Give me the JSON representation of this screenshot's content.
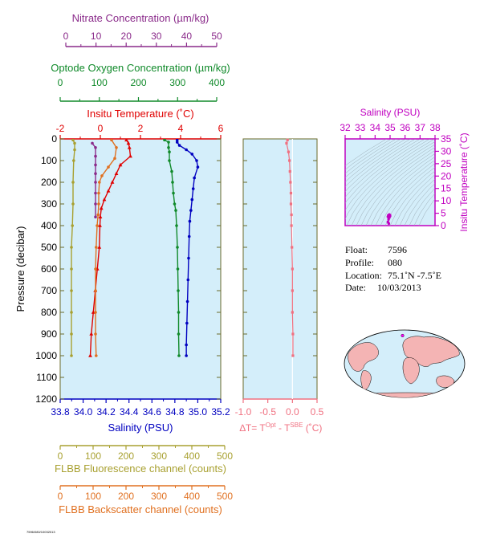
{
  "colors": {
    "nitrate": "#8a2a8a",
    "oxygen": "#108a2a",
    "temperature": "#e00000",
    "salinity": "#0000c0",
    "salinity_ts": "#c000c0",
    "fluorescence": "#a8a030",
    "backscatter": "#e07020",
    "delta_t": "#f07080",
    "plot_bg": "#d4eefa",
    "frame": "#6a6a2a",
    "land": "#f4b4b4"
  },
  "chart_data": [
    {
      "id": "main_profile",
      "type": "line",
      "ylabel": "Pressure (decibar)",
      "ylim": [
        1200,
        0
      ],
      "yticks": [
        0,
        100,
        200,
        300,
        400,
        500,
        600,
        700,
        800,
        900,
        1000,
        1100,
        1200
      ],
      "axes": {
        "nitrate": {
          "label": "Nitrate Concentration (µm/kg)",
          "range": [
            0,
            50
          ],
          "ticks": [
            0,
            10,
            20,
            30,
            40,
            50
          ]
        },
        "oxygen": {
          "label": "Optode Oxygen Concentration (µm/kg)",
          "range": [
            0,
            400
          ],
          "ticks": [
            0,
            100,
            200,
            300,
            400
          ]
        },
        "temperature": {
          "label": "Insitu Temperature (˚C)",
          "range": [
            -2,
            6
          ],
          "ticks": [
            -2,
            0,
            2,
            4,
            6
          ]
        },
        "salinity": {
          "label": "Salinity (PSU)",
          "range": [
            33.8,
            35.2
          ],
          "ticks": [
            "33.8",
            "34.0",
            "34.2",
            "34.4",
            "34.6",
            "34.8",
            "35.0",
            "35.2"
          ]
        },
        "fluorescence": {
          "label": "FLBB Fluorescence channel (counts)",
          "range": [
            0,
            500
          ],
          "ticks": [
            0,
            100,
            200,
            300,
            400,
            500
          ]
        },
        "backscatter": {
          "label": "FLBB Backscatter channel (counts)",
          "range": [
            0,
            500
          ],
          "ticks": [
            0,
            100,
            200,
            300,
            400,
            500
          ]
        }
      },
      "series": [
        {
          "key": "salinity",
          "axis": "salinity",
          "points": [
            [
              34.82,
              5
            ],
            [
              34.82,
              15
            ],
            [
              34.84,
              30
            ],
            [
              34.9,
              50
            ],
            [
              34.95,
              70
            ],
            [
              34.99,
              100
            ],
            [
              35.0,
              130
            ],
            [
              34.97,
              180
            ],
            [
              34.96,
              230
            ],
            [
              34.95,
              280
            ],
            [
              34.94,
              330
            ],
            [
              34.93,
              380
            ],
            [
              34.925,
              450
            ],
            [
              34.92,
              550
            ],
            [
              34.915,
              650
            ],
            [
              34.91,
              750
            ],
            [
              34.905,
              850
            ],
            [
              34.9,
              950
            ],
            [
              34.9,
              1000
            ]
          ]
        },
        {
          "key": "oxygen",
          "axis": "oxygen",
          "points": [
            [
              260,
              5
            ],
            [
              270,
              15
            ],
            [
              270,
              40
            ],
            [
              272,
              60
            ],
            [
              272,
              100
            ],
            [
              278,
              150
            ],
            [
              280,
              200
            ],
            [
              282,
              250
            ],
            [
              285,
              300
            ],
            [
              288,
              330
            ],
            [
              290,
              400
            ],
            [
              292,
              500
            ],
            [
              293,
              600
            ],
            [
              294,
              700
            ],
            [
              295,
              800
            ],
            [
              295,
              900
            ],
            [
              296,
              1000
            ]
          ]
        },
        {
          "key": "temperature",
          "axis": "temperature",
          "points": [
            [
              1.3,
              5
            ],
            [
              1.4,
              20
            ],
            [
              1.45,
              40
            ],
            [
              1.5,
              80
            ],
            [
              1.0,
              120
            ],
            [
              0.8,
              160
            ],
            [
              0.6,
              200
            ],
            [
              0.4,
              240
            ],
            [
              0.2,
              280
            ],
            [
              0.05,
              320
            ],
            [
              0.0,
              360
            ],
            [
              -0.02,
              400
            ],
            [
              -0.05,
              500
            ],
            [
              -0.15,
              600
            ],
            [
              -0.25,
              700
            ],
            [
              -0.35,
              800
            ],
            [
              -0.45,
              900
            ],
            [
              -0.5,
              1000
            ]
          ]
        },
        {
          "key": "nitrate",
          "axis": "nitrate",
          "points": [
            [
              10,
              20
            ],
            [
              11,
              40
            ],
            [
              11,
              80
            ],
            [
              11,
              120
            ],
            [
              11,
              160
            ],
            [
              11,
              200
            ],
            [
              11,
              250
            ],
            [
              11,
              300
            ],
            [
              11,
              360
            ]
          ]
        },
        {
          "key": "fluorescence",
          "axis": "fluorescence",
          "points": [
            [
              40,
              5
            ],
            [
              45,
              20
            ],
            [
              45,
              50
            ],
            [
              42,
              100
            ],
            [
              40,
              200
            ],
            [
              40,
              300
            ],
            [
              38,
              400
            ],
            [
              35,
              500
            ],
            [
              35,
              600
            ],
            [
              35,
              700
            ],
            [
              35,
              800
            ],
            [
              35,
              900
            ],
            [
              35,
              1000
            ]
          ]
        },
        {
          "key": "backscatter",
          "axis": "backscatter",
          "points": [
            [
              160,
              5
            ],
            [
              175,
              40
            ],
            [
              170,
              90
            ],
            [
              150,
              130
            ],
            [
              130,
              170
            ],
            [
              122,
              200
            ],
            [
              120,
              250
            ],
            [
              120,
              300
            ],
            [
              118,
              350
            ],
            [
              115,
              400
            ],
            [
              112,
              500
            ],
            [
              110,
              600
            ],
            [
              110,
              700
            ],
            [
              110,
              800
            ],
            [
              110,
              900
            ],
            [
              112,
              1000
            ]
          ]
        }
      ]
    },
    {
      "id": "delta_t",
      "type": "line",
      "xlabel": "∆T= T",
      "xlabel_sup1": "Opt",
      "xlabel_mid": " - T",
      "xlabel_sup2": "SBE",
      "xlabel_unit": " (˚C)",
      "xlim": [
        -1.0,
        0.5
      ],
      "ylim": [
        1200,
        0
      ],
      "xticks": [
        "-1.0",
        "-0.5",
        "0.0",
        "0.5"
      ],
      "points": [
        [
          -0.1,
          5
        ],
        [
          -0.12,
          20
        ],
        [
          -0.08,
          60
        ],
        [
          -0.06,
          100
        ],
        [
          -0.05,
          150
        ],
        [
          -0.04,
          200
        ],
        [
          -0.03,
          250
        ],
        [
          -0.03,
          300
        ],
        [
          -0.02,
          350
        ],
        [
          -0.02,
          400
        ],
        [
          -0.01,
          500
        ],
        [
          0,
          600
        ],
        [
          0,
          700
        ],
        [
          0,
          800
        ],
        [
          0.01,
          900
        ],
        [
          0.01,
          1000
        ]
      ]
    },
    {
      "id": "ts_diagram",
      "type": "scatter",
      "title": "Salinity (PSU)",
      "ylabel": "Insitu Temperature (˚C)",
      "xlim": [
        32,
        38
      ],
      "ylim": [
        0,
        35
      ],
      "xticks": [
        32,
        33,
        34,
        35,
        36,
        37,
        38
      ],
      "yticks": [
        0,
        5,
        10,
        15,
        20,
        25,
        30,
        35
      ],
      "points": [
        [
          34.85,
          1.5
        ],
        [
          34.9,
          2.5
        ],
        [
          34.95,
          3.2
        ],
        [
          35.0,
          3.8
        ],
        [
          35.0,
          4.2
        ],
        [
          34.95,
          4.5
        ],
        [
          34.88,
          4.2
        ],
        [
          34.85,
          3.6
        ],
        [
          34.9,
          1.0
        ],
        [
          34.92,
          0.8
        ]
      ]
    }
  ],
  "metadata": {
    "float_label": "Float:",
    "float_value": "7596",
    "profile_label": "Profile:",
    "profile_value": "080",
    "location_label": "Location:",
    "location_value": "75.1˚N  -7.5˚E",
    "date_label": "Date:",
    "date_value": "10/03/2013"
  },
  "map": {
    "float_lon": -7.5,
    "float_lat": 75.1
  },
  "footer": {
    "stamp": "7596/080/10032013"
  }
}
